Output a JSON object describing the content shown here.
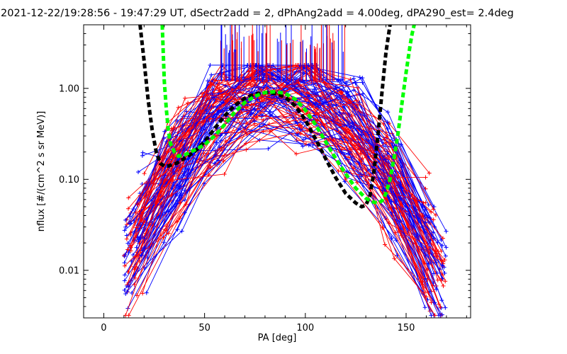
{
  "chart_data": {
    "type": "line",
    "title": "2021-12-22/19:28:56 - 19:47:29 UT, dSectr2add = 2, dPhAng2add = 4.00deg, dPA290_est=    2.4deg",
    "xlabel": "PA [deg]",
    "ylabel": "nflux [#/(cm^2 s sr MeV)]",
    "xlim": [
      -10,
      182
    ],
    "ylim": [
      0.003,
      5
    ],
    "yscale": "log",
    "x_ticks": [
      0,
      50,
      100,
      150
    ],
    "x_tick_labels": [
      "0",
      "50",
      "100",
      "150"
    ],
    "y_ticks": [
      0.01,
      0.1,
      1.0
    ],
    "y_tick_labels": [
      "0.01",
      "0.10",
      "1.00"
    ],
    "grid": false,
    "colors": {
      "red": "#ff0000",
      "blue": "#0000ff",
      "black": "#000000",
      "green": "#00ff00"
    },
    "series": [
      {
        "color": "black",
        "style": "dashed-thick",
        "x": [
          18,
          20,
          22,
          24,
          26,
          28,
          30,
          32,
          34,
          36,
          40,
          45,
          50,
          55,
          60,
          65,
          70,
          75,
          80,
          85,
          90,
          95,
          100,
          105,
          110,
          115,
          120,
          125,
          128,
          130,
          132,
          134,
          136,
          138,
          140,
          142
        ],
        "y": [
          5,
          2.0,
          0.75,
          0.35,
          0.2,
          0.15,
          0.14,
          0.14,
          0.145,
          0.15,
          0.17,
          0.2,
          0.26,
          0.36,
          0.5,
          0.65,
          0.78,
          0.87,
          0.9,
          0.88,
          0.8,
          0.64,
          0.45,
          0.28,
          0.17,
          0.105,
          0.07,
          0.055,
          0.05,
          0.052,
          0.065,
          0.12,
          0.3,
          0.9,
          2.5,
          5
        ]
      },
      {
        "color": "green",
        "style": "dashed-thick",
        "x": [
          29,
          30,
          31,
          32,
          33,
          35,
          37,
          40,
          45,
          50,
          55,
          60,
          65,
          70,
          75,
          80,
          85,
          90,
          95,
          100,
          105,
          110,
          115,
          120,
          125,
          130,
          134,
          136,
          138,
          140,
          142,
          144,
          146,
          148,
          150,
          152,
          153,
          154
        ],
        "y": [
          5,
          1.2,
          0.6,
          0.35,
          0.25,
          0.2,
          0.18,
          0.185,
          0.21,
          0.24,
          0.3,
          0.4,
          0.55,
          0.7,
          0.82,
          0.9,
          0.92,
          0.88,
          0.76,
          0.58,
          0.4,
          0.26,
          0.17,
          0.115,
          0.08,
          0.062,
          0.056,
          0.055,
          0.058,
          0.07,
          0.1,
          0.17,
          0.32,
          0.7,
          1.5,
          3.0,
          4.0,
          5
        ]
      }
    ]
  }
}
